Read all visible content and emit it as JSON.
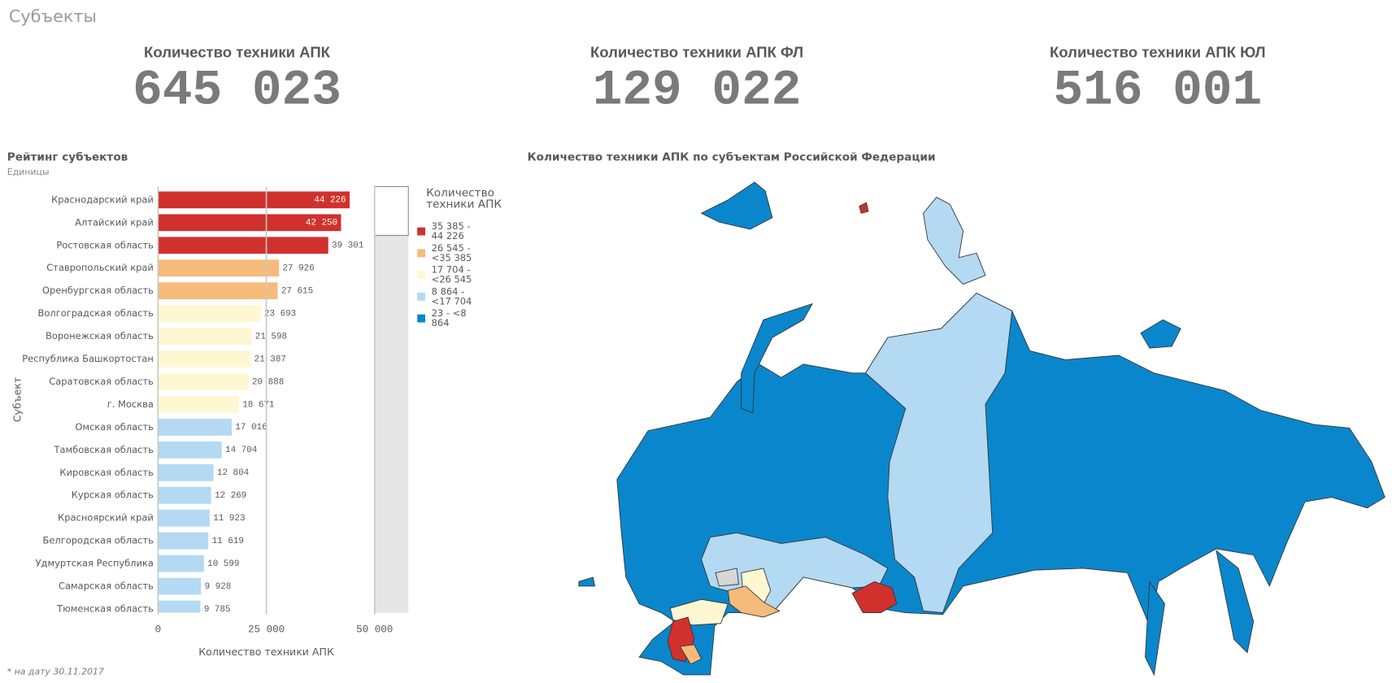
{
  "header": {
    "title": "Субъекты"
  },
  "kpis": [
    {
      "label": "Количество техники АПК",
      "value": "645 023"
    },
    {
      "label": "Количество техники АПК ФЛ",
      "value": "129 022"
    },
    {
      "label": "Количество техники АПК ЮЛ",
      "value": "516 001"
    }
  ],
  "chart_data": {
    "type": "bar",
    "orientation": "horizontal",
    "title": "Рейтинг субъектов",
    "subtitle": "Единицы",
    "y_axis_label": "Субъект",
    "x_axis_label": "Количество техники АПК",
    "categories": [
      "Краснодарский край",
      "Алтайский край",
      "Ростовская область",
      "Ставропольский край",
      "Оренбургская область",
      "Волгоградская область",
      "Воронежская область",
      "Республика Башкортостан",
      "Саратовская область",
      "г. Москва",
      "Омская область",
      "Тамбовская область",
      "Кировская область",
      "Курская область",
      "Красноярский край",
      "Белгородская область",
      "Удмуртская Республика",
      "Самарская область",
      "Тюменская область"
    ],
    "values": [
      44226,
      42250,
      39301,
      27926,
      27615,
      23693,
      21598,
      21387,
      20888,
      18671,
      17016,
      14704,
      12804,
      12269,
      11923,
      11619,
      10599,
      9928,
      9785
    ],
    "value_labels": [
      "44 226",
      "42 250",
      "39 301",
      "27 926",
      "27 615",
      "23 693",
      "21 598",
      "21 387",
      "20 888",
      "18 671",
      "17 016",
      "14 704",
      "12 804",
      "12 269",
      "11 923",
      "11 619",
      "10 599",
      "9 928",
      "9 785"
    ],
    "colors": [
      "#d0312d",
      "#d0312d",
      "#d0312d",
      "#f6bb7a",
      "#f6bb7a",
      "#fef8d2",
      "#fef8d2",
      "#fef8d2",
      "#fef8d2",
      "#fef8d2",
      "#b3d9f3",
      "#b3d9f3",
      "#b3d9f3",
      "#b3d9f3",
      "#b3d9f3",
      "#b3d9f3",
      "#b3d9f3",
      "#b3d9f3",
      "#b3d9f3"
    ],
    "xlim": [
      0,
      50000
    ],
    "xticks": [
      0,
      {
        "value": 25000,
        "label": "25 000"
      },
      {
        "value": 50000,
        "label": "50 000"
      }
    ],
    "grid": true,
    "legend": {
      "title": "Количество техники АПК",
      "position": "right",
      "items": [
        {
          "label": "35 385 - 44 226",
          "color": "#d0312d"
        },
        {
          "label": "26 545 - <35 385",
          "color": "#f6bb7a"
        },
        {
          "label": "17 704 - <26 545",
          "color": "#fef8d2"
        },
        {
          "label": "8 864 - <17 704",
          "color": "#b3d9f3"
        },
        {
          "label": "23 - <8 864",
          "color": "#0a87cc"
        }
      ]
    }
  },
  "map": {
    "title": "Количество техники АПК по субъектам Российской Федерации"
  },
  "footnote": "* на дату 30.11.2017"
}
